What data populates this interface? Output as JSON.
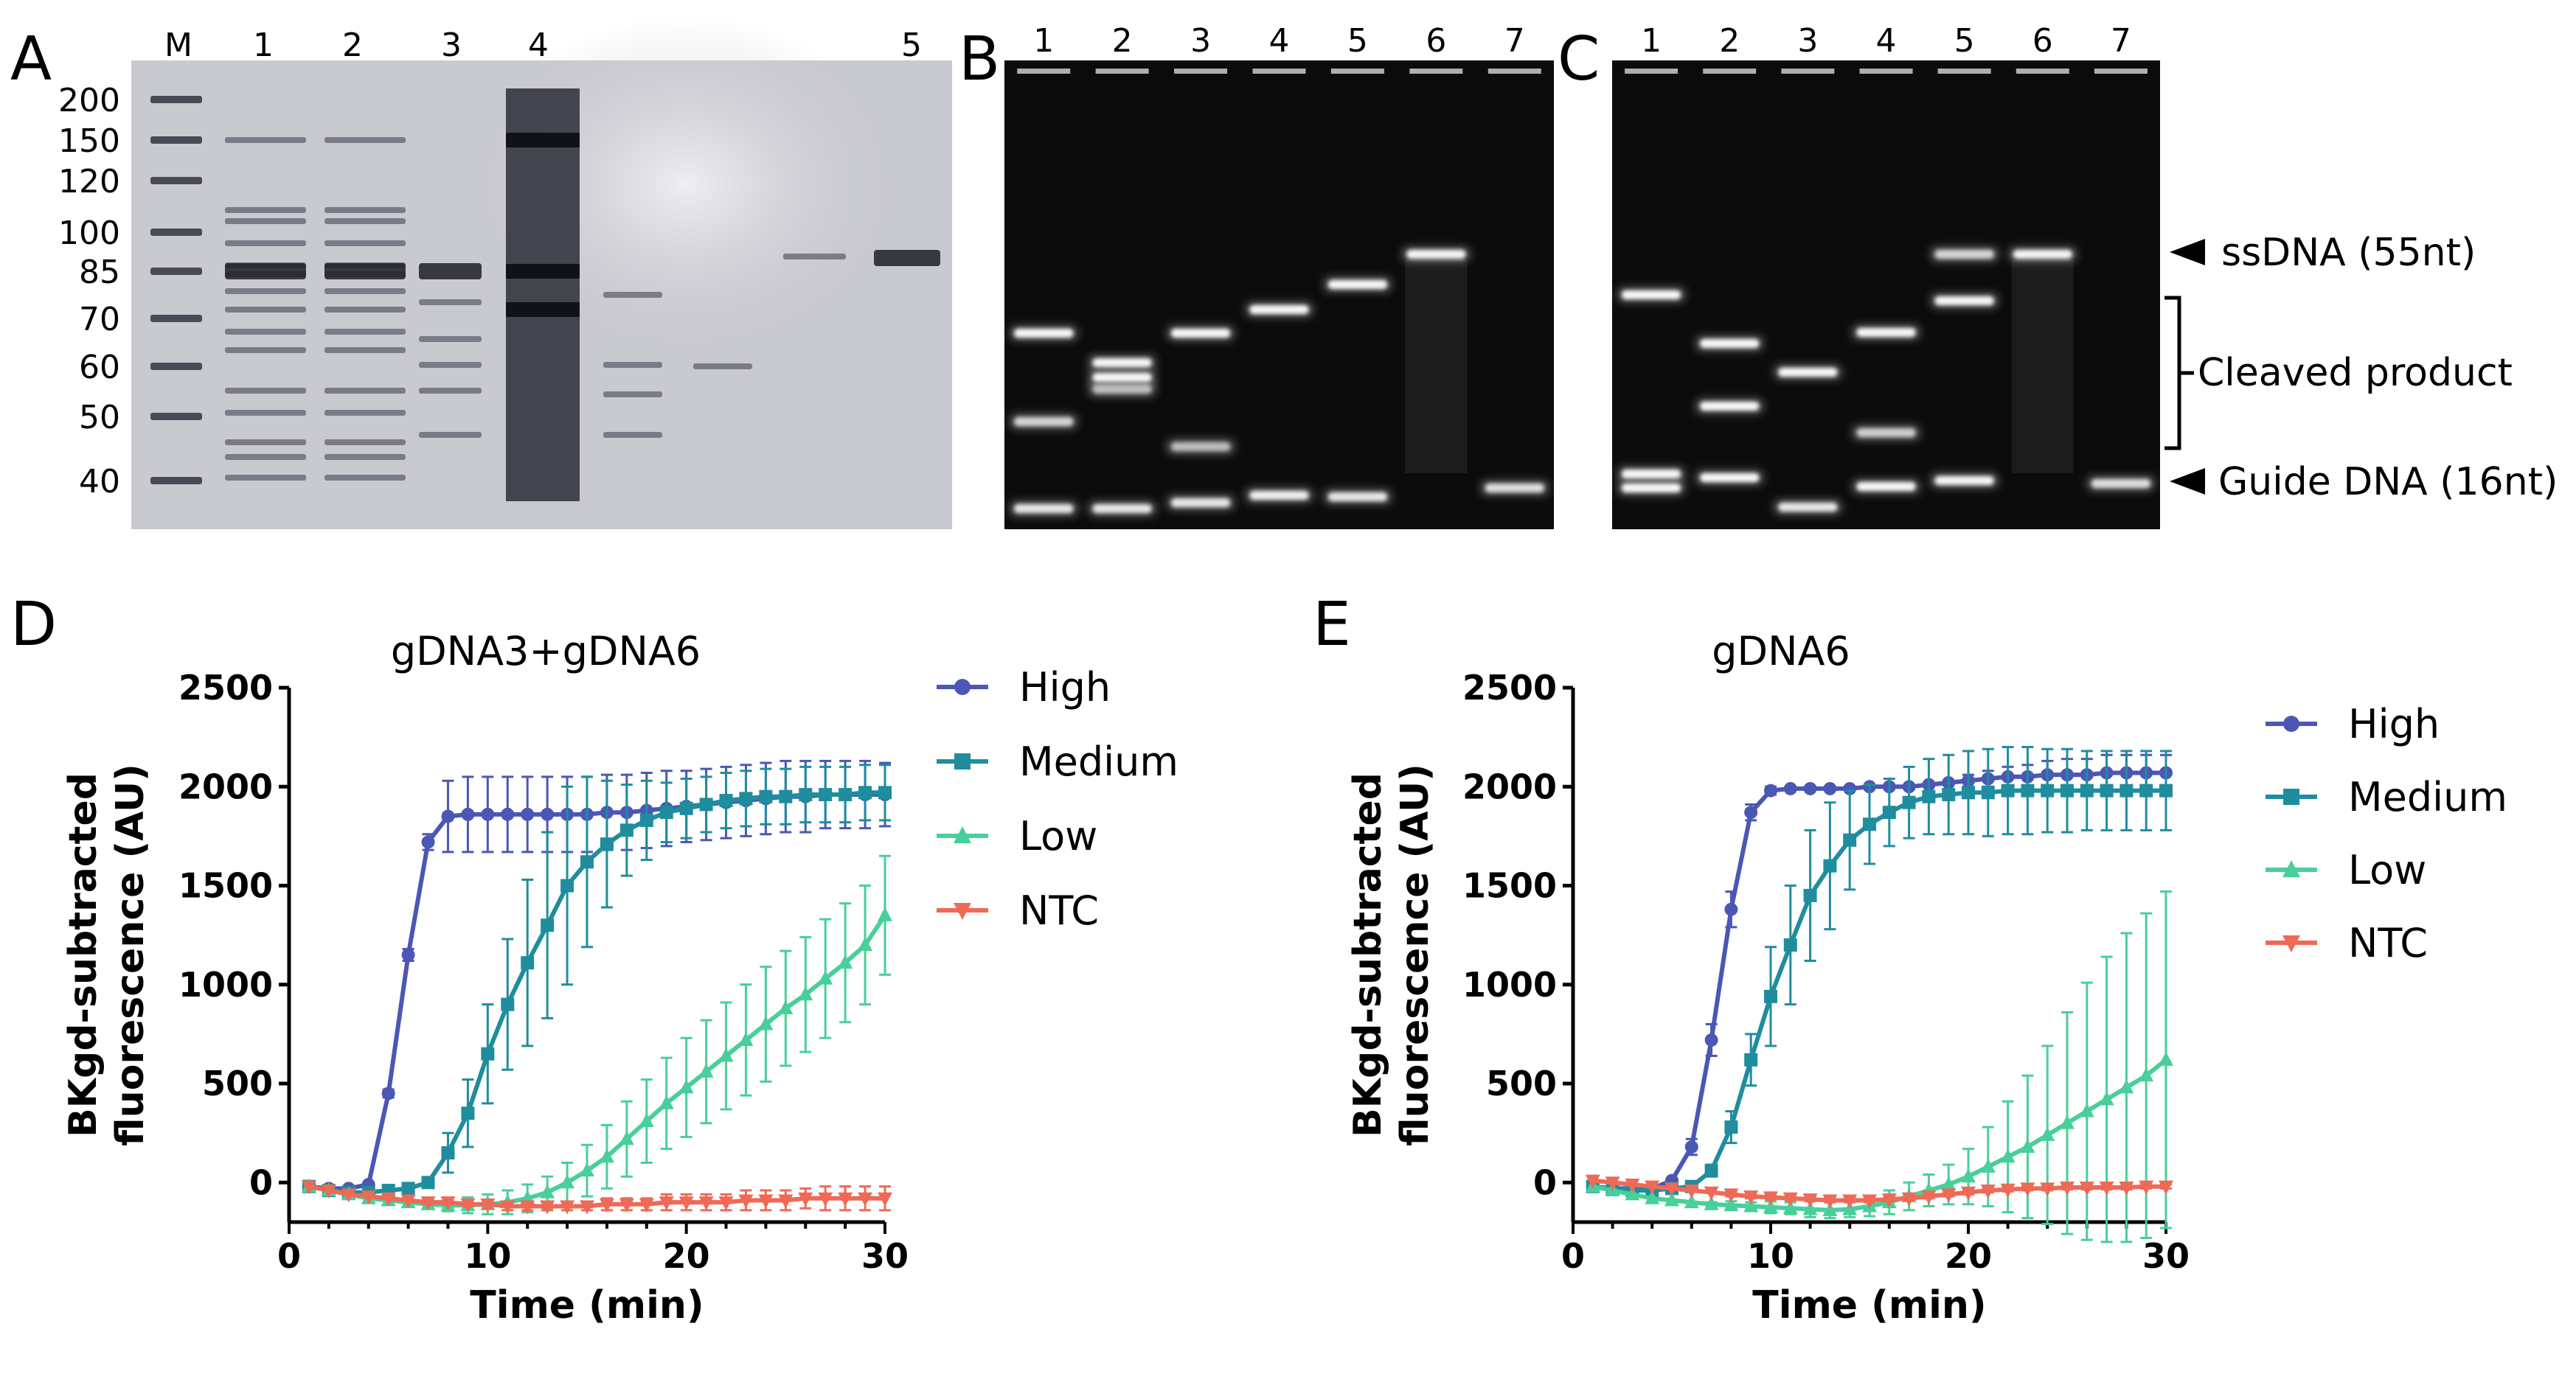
{
  "panels": {
    "A": {
      "letter": "A",
      "lanes": [
        "M",
        "1",
        "2",
        "3",
        "4",
        "5"
      ],
      "markers": [
        "200",
        "150",
        "120",
        "100",
        "85",
        "70",
        "60",
        "50",
        "40"
      ]
    },
    "B": {
      "letter": "B",
      "lanes": [
        "1",
        "2",
        "3",
        "4",
        "5",
        "6",
        "7"
      ]
    },
    "C": {
      "letter": "C",
      "lanes": [
        "1",
        "2",
        "3",
        "4",
        "5",
        "6",
        "7"
      ]
    },
    "D": {
      "letter": "D"
    },
    "E": {
      "letter": "E"
    }
  },
  "gel_annotations": {
    "ssdna": "ssDNA (55nt)",
    "cleaved": "Cleaved product",
    "guide": "Guide DNA (16nt)"
  },
  "colors": {
    "High": "#4b57b5",
    "Medium": "#1f8d9e",
    "Low": "#48cf9a",
    "NTC": "#ee6a57",
    "gel_a_bg": "#c9c9d0",
    "gel_dark_bg": "#0b0b0b"
  },
  "chart_data": [
    {
      "type": "line",
      "panel": "D",
      "title": "gDNA3+gDNA6",
      "xlabel": "Time (min)",
      "ylabel": "BKgd-subtracted fluorescence (AU)",
      "xlim": [
        0,
        30
      ],
      "ylim": [
        -200,
        2500
      ],
      "xticks": [
        "0",
        "10",
        "20",
        "30"
      ],
      "yticks": [
        "0",
        "500",
        "1000",
        "1500",
        "2000",
        "2500"
      ],
      "legend": [
        "High",
        "Medium",
        "Low",
        "NTC"
      ],
      "x": [
        1,
        2,
        3,
        4,
        5,
        6,
        7,
        8,
        9,
        10,
        11,
        12,
        13,
        14,
        15,
        16,
        17,
        18,
        19,
        20,
        21,
        22,
        23,
        24,
        25,
        26,
        27,
        28,
        29,
        30
      ],
      "series": [
        {
          "name": "High",
          "values": [
            -20,
            -30,
            -30,
            -10,
            450,
            1150,
            1720,
            1850,
            1860,
            1860,
            1860,
            1860,
            1860,
            1860,
            1860,
            1870,
            1870,
            1880,
            1890,
            1900,
            1910,
            1920,
            1930,
            1940,
            1950,
            1950,
            1960,
            1960,
            1960,
            1960
          ],
          "errors": [
            0,
            0,
            0,
            0,
            20,
            30,
            40,
            180,
            190,
            190,
            190,
            190,
            190,
            190,
            190,
            190,
            190,
            190,
            190,
            180,
            180,
            180,
            180,
            180,
            180,
            180,
            170,
            170,
            170,
            160
          ]
        },
        {
          "name": "Medium",
          "values": [
            -20,
            -40,
            -50,
            -50,
            -40,
            -30,
            0,
            150,
            350,
            650,
            900,
            1110,
            1300,
            1500,
            1620,
            1710,
            1780,
            1830,
            1870,
            1890,
            1910,
            1930,
            1940,
            1950,
            1950,
            1960,
            1960,
            1960,
            1970,
            1970
          ],
          "errors": [
            0,
            0,
            0,
            0,
            0,
            0,
            20,
            100,
            170,
            250,
            330,
            420,
            470,
            500,
            430,
            320,
            230,
            200,
            150,
            150,
            140,
            140,
            140,
            140,
            140,
            140,
            140,
            140,
            140,
            140
          ]
        },
        {
          "name": "Low",
          "values": [
            -20,
            -40,
            -60,
            -80,
            -90,
            -100,
            -110,
            -115,
            -115,
            -110,
            -100,
            -80,
            -50,
            0,
            60,
            130,
            220,
            310,
            400,
            480,
            560,
            640,
            720,
            800,
            880,
            950,
            1030,
            1110,
            1200,
            1350
          ],
          "errors": [
            0,
            0,
            0,
            0,
            0,
            0,
            20,
            30,
            40,
            50,
            60,
            70,
            80,
            100,
            130,
            160,
            190,
            210,
            230,
            250,
            260,
            270,
            280,
            290,
            290,
            290,
            300,
            300,
            300,
            300
          ]
        },
        {
          "name": "NTC",
          "values": [
            -20,
            -40,
            -60,
            -70,
            -80,
            -90,
            -100,
            -100,
            -110,
            -110,
            -120,
            -120,
            -120,
            -120,
            -120,
            -110,
            -110,
            -110,
            -100,
            -100,
            -100,
            -100,
            -90,
            -90,
            -90,
            -80,
            -80,
            -80,
            -80,
            -80
          ],
          "errors": [
            0,
            0,
            0,
            0,
            0,
            0,
            10,
            10,
            10,
            20,
            20,
            20,
            20,
            20,
            20,
            30,
            30,
            30,
            40,
            40,
            40,
            40,
            50,
            50,
            50,
            50,
            60,
            60,
            60,
            60
          ]
        }
      ]
    },
    {
      "type": "line",
      "panel": "E",
      "title": "gDNA6",
      "xlabel": "Time (min)",
      "ylabel": "BKgd-subtracted fluorescence (AU)",
      "xlim": [
        0,
        30
      ],
      "ylim": [
        -200,
        2500
      ],
      "xticks": [
        "0",
        "10",
        "20",
        "30"
      ],
      "yticks": [
        "0",
        "500",
        "1000",
        "1500",
        "2000",
        "2500"
      ],
      "legend": [
        "High",
        "Medium",
        "Low",
        "NTC"
      ],
      "x": [
        1,
        2,
        3,
        4,
        5,
        6,
        7,
        8,
        9,
        10,
        11,
        12,
        13,
        14,
        15,
        16,
        17,
        18,
        19,
        20,
        21,
        22,
        23,
        24,
        25,
        26,
        27,
        28,
        29,
        30
      ],
      "series": [
        {
          "name": "High",
          "values": [
            -20,
            -30,
            -30,
            -30,
            10,
            180,
            720,
            1380,
            1870,
            1980,
            1990,
            1990,
            1990,
            1990,
            2000,
            2000,
            2000,
            2010,
            2020,
            2030,
            2040,
            2050,
            2050,
            2060,
            2060,
            2060,
            2070,
            2070,
            2070,
            2070
          ],
          "errors": [
            0,
            0,
            0,
            0,
            10,
            40,
            80,
            90,
            40,
            20,
            0,
            0,
            0,
            0,
            0,
            0,
            0,
            0,
            0,
            30,
            40,
            50,
            60,
            70,
            80,
            80,
            90,
            90,
            90,
            90
          ]
        },
        {
          "name": "Medium",
          "values": [
            -20,
            -30,
            -40,
            -40,
            -30,
            -20,
            60,
            280,
            620,
            940,
            1200,
            1450,
            1600,
            1730,
            1810,
            1870,
            1920,
            1950,
            1960,
            1970,
            1970,
            1980,
            1980,
            1980,
            1980,
            1980,
            1980,
            1980,
            1980,
            1980
          ],
          "errors": [
            0,
            0,
            0,
            0,
            0,
            0,
            30,
            80,
            130,
            250,
            300,
            330,
            320,
            250,
            200,
            170,
            180,
            190,
            200,
            210,
            220,
            220,
            220,
            210,
            210,
            200,
            200,
            200,
            200,
            200
          ]
        },
        {
          "name": "Low",
          "values": [
            -20,
            -40,
            -60,
            -80,
            -90,
            -100,
            -110,
            -115,
            -120,
            -125,
            -130,
            -135,
            -140,
            -135,
            -120,
            -100,
            -70,
            -40,
            -10,
            30,
            80,
            130,
            180,
            240,
            300,
            360,
            420,
            480,
            540,
            620
          ],
          "errors": [
            0,
            0,
            0,
            0,
            0,
            0,
            10,
            20,
            20,
            30,
            30,
            40,
            40,
            40,
            50,
            60,
            70,
            80,
            100,
            140,
            200,
            280,
            360,
            450,
            560,
            650,
            720,
            780,
            820,
            850
          ]
        },
        {
          "name": "NTC",
          "values": [
            10,
            0,
            -10,
            -20,
            -30,
            -40,
            -50,
            -60,
            -70,
            -75,
            -80,
            -85,
            -90,
            -90,
            -90,
            -85,
            -80,
            -70,
            -60,
            -50,
            -40,
            -35,
            -30,
            -30,
            -25,
            -25,
            -25,
            -25,
            -20,
            -20
          ],
          "errors": [
            0,
            0,
            0,
            0,
            0,
            0,
            0,
            10,
            10,
            10,
            10,
            10,
            10,
            10,
            10,
            10,
            10,
            10,
            10,
            10,
            10,
            10,
            10,
            10,
            10,
            10,
            10,
            10,
            10,
            10
          ]
        }
      ]
    }
  ]
}
